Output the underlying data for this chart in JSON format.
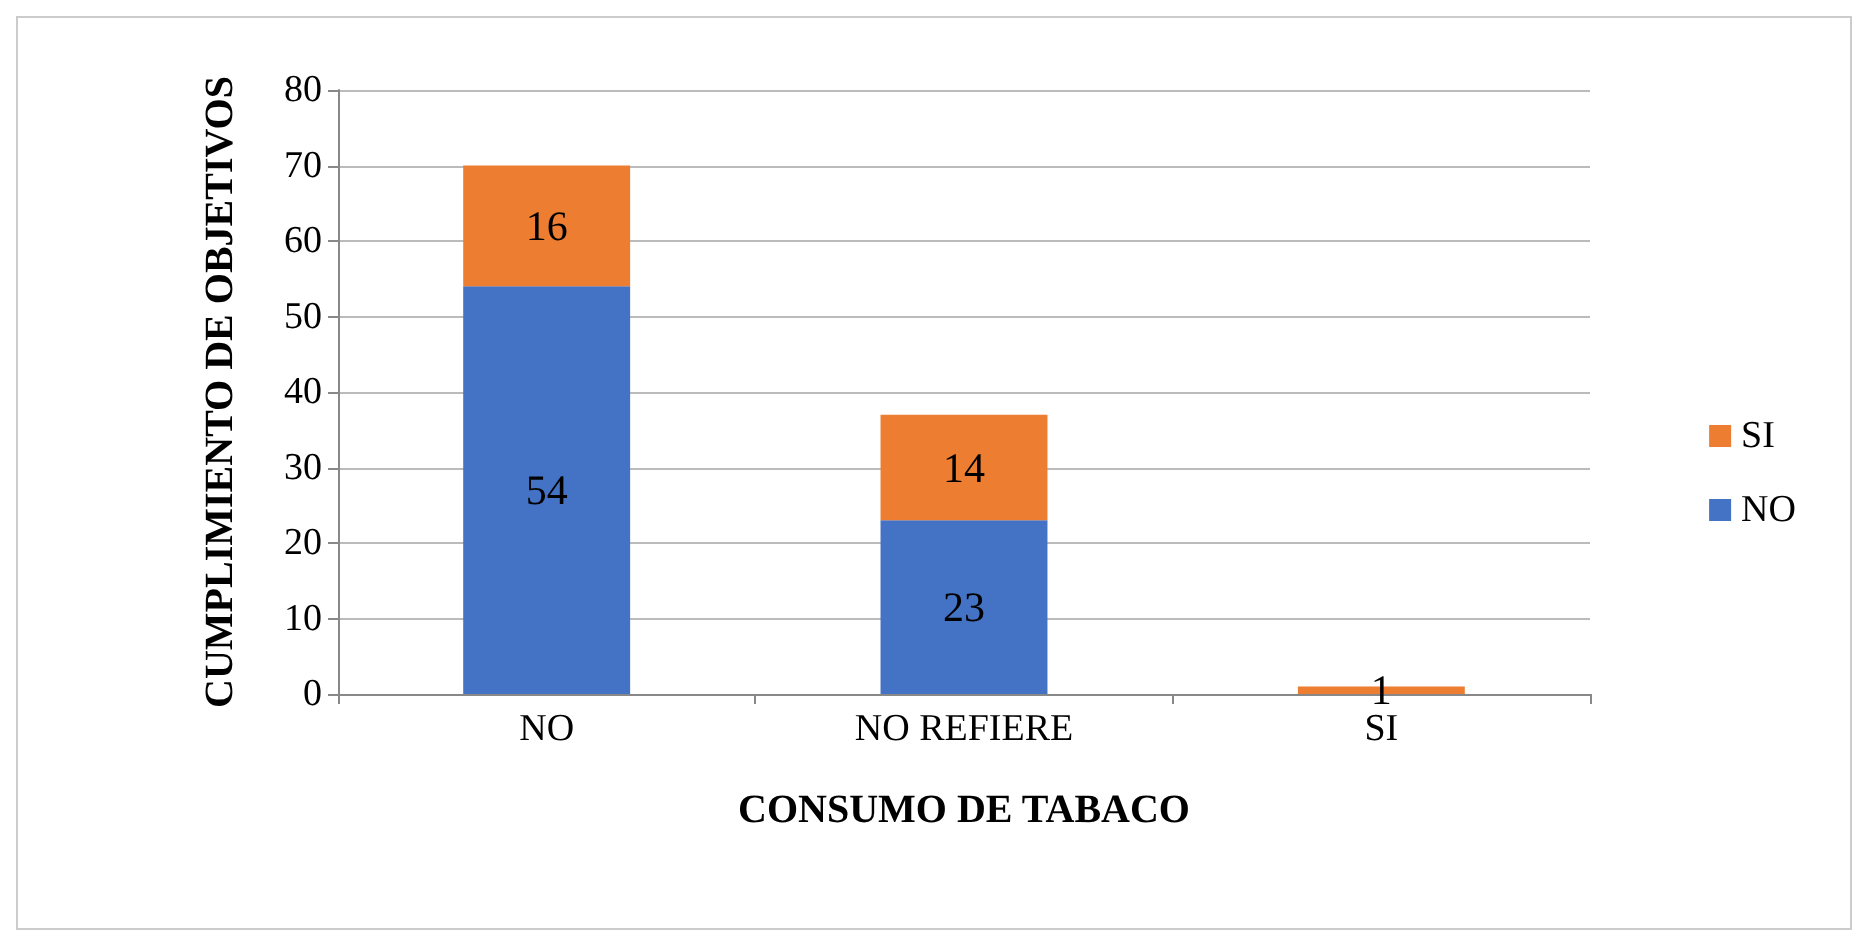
{
  "chart_data": {
    "type": "bar",
    "stacked": true,
    "xlabel": "CONSUMO DE TABACO",
    "ylabel": "CUMPLIMIENTO DE OBJETIVOS",
    "categories": [
      "NO",
      "NO REFIERE",
      "SI"
    ],
    "series": [
      {
        "name": "NO",
        "color": "#4472c4",
        "values": [
          54,
          23,
          null
        ],
        "value_labels": [
          "54",
          "23",
          null
        ]
      },
      {
        "name": "SI",
        "color": "#ed7d31",
        "values": [
          16,
          14,
          1
        ],
        "value_labels": [
          "16",
          "14",
          "1"
        ]
      }
    ],
    "ylim": [
      0,
      80
    ],
    "yticks": [
      0,
      10,
      20,
      30,
      40,
      50,
      60,
      70,
      80
    ],
    "grid": "y",
    "legend": "right"
  }
}
